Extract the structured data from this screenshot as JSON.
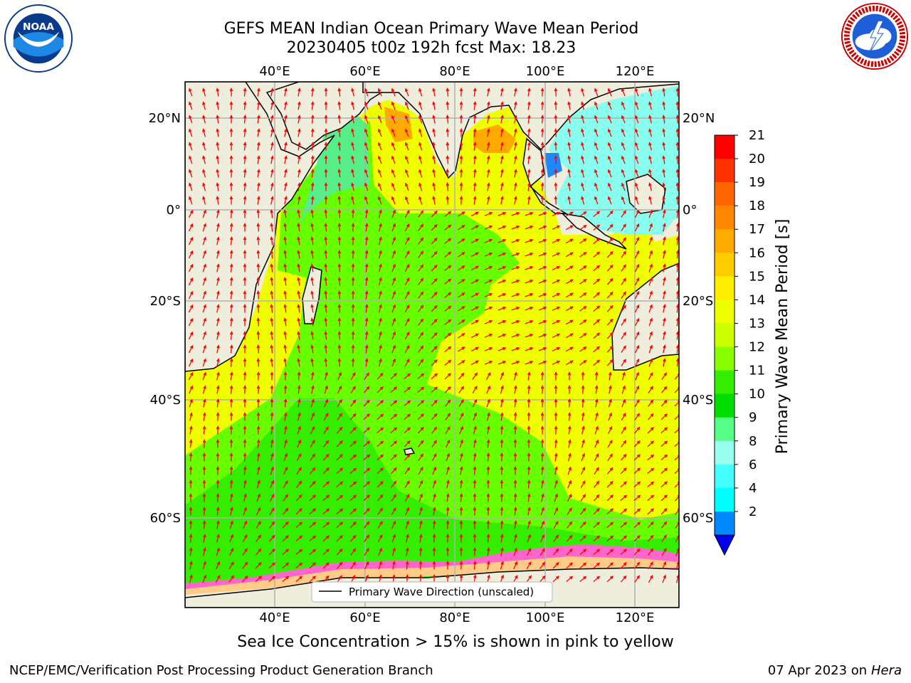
{
  "title_line1": "GEFS MEAN Indian Ocean Primary Wave Mean Period",
  "title_line2": "20230405 t00z 192h fcst   Max: 18.23",
  "note": "Sea Ice Concentration > 15% is shown in pink to yellow",
  "footer_left": "NCEP/EMC/Verification Post Processing Product Generation Branch",
  "footer_date": "07 Apr 2023 on ",
  "footer_host": "Hera",
  "legend_label": "Primary Wave Direction (unscaled)",
  "logos": {
    "left": "noaa-logo",
    "right": "nws-logo",
    "left_text": "NOAA"
  },
  "map": {
    "lon_ticks": [
      "40°E",
      "60°E",
      "80°E",
      "100°E",
      "120°E"
    ],
    "lat_ticks": [
      "20°N",
      "0°",
      "20°S",
      "40°S",
      "60°S"
    ],
    "land_color": "#efeddc",
    "arrow_color": "#ff0000"
  },
  "colorbar": {
    "label": "Primary Wave Mean Period [s]",
    "ticks": [
      "21",
      "20",
      "19",
      "18",
      "17",
      "16",
      "15",
      "14",
      "13",
      "12",
      "11",
      "10",
      "9",
      "8",
      "6",
      "4",
      "2"
    ],
    "colors": [
      "#ff0000",
      "#ff3300",
      "#ff6600",
      "#ff8800",
      "#ffaa00",
      "#ffcc00",
      "#ffee00",
      "#eeff00",
      "#ccff00",
      "#88ff00",
      "#33ee00",
      "#00dd00",
      "#55ff88",
      "#99ffee",
      "#44ffff",
      "#00ffff",
      "#0088ff"
    ],
    "extend_color": "#0000ee"
  }
}
